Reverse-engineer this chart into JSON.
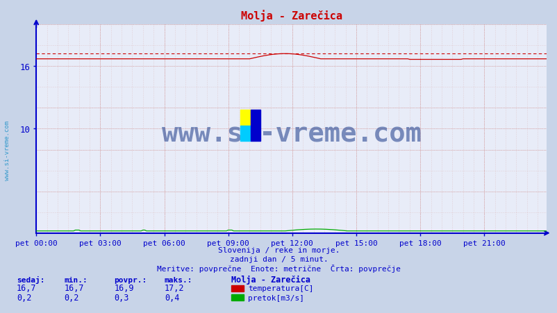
{
  "title": "Molja - Zarečica",
  "background_color": "#c8d4e8",
  "plot_background": "#e8ecf8",
  "x_labels": [
    "pet 00:00",
    "pet 03:00",
    "pet 06:00",
    "pet 09:00",
    "pet 12:00",
    "pet 15:00",
    "pet 18:00",
    "pet 21:00"
  ],
  "x_tick_hours": [
    0,
    3,
    6,
    9,
    12,
    15,
    18,
    21
  ],
  "n_points": 288,
  "y_min": 0,
  "y_max": 20,
  "y_ticks_labeled": [
    10,
    16
  ],
  "temp_color": "#cc0000",
  "flow_color": "#00aa00",
  "axis_color": "#0000cc",
  "grid_color_red": "#cc8888",
  "grid_color_light": "#ddbbbb",
  "watermark": "www.si-vreme.com",
  "watermark_color": "#1a3a8a",
  "sidebar_text": "www.si-vreme.com",
  "sidebar_color": "#3399cc",
  "footer1": "Slovenija / reke in morje.",
  "footer2": "zadnji dan / 5 minut.",
  "footer3": "Meritve: povprečne  Enote: metrične  Črta: povprečje",
  "footer_color": "#0000cc",
  "legend_title": "Molja - Zarečica",
  "legend_temp": "temperatura[C]",
  "legend_flow": "pretok[m3/s]",
  "table_headers": [
    "sedaj:",
    "min.:",
    "povpr.:",
    "maks.:"
  ],
  "table_temp": [
    "16,7",
    "16,7",
    "16,9",
    "17,2"
  ],
  "table_flow": [
    "0,2",
    "0,2",
    "0,3",
    "0,4"
  ],
  "temp_max_val": 17.2,
  "temp_base_val": 16.7
}
